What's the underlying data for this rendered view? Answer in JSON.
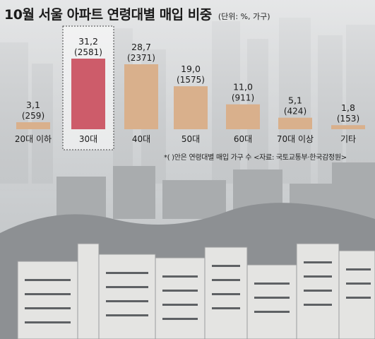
{
  "title": "10월 서울 아파트 연령대별 매입 비중",
  "unit": "(단위: %, 가구)",
  "note": "*( )안은 연령대별 매입 가구 수 <자료: 국토교통부·한국감정원>",
  "colors": {
    "bar": "#d9b08c",
    "highlight": "#cd5c6a"
  },
  "chart_data": {
    "type": "bar",
    "categories": [
      "20대 이하",
      "30대",
      "40대",
      "50대",
      "60대",
      "70대 이상",
      "기타"
    ],
    "values": [
      3.1,
      31.2,
      28.7,
      19.0,
      11.0,
      5.1,
      1.8
    ],
    "value_labels": [
      "3,1",
      "31,2",
      "28,7",
      "19,0",
      "11,0",
      "5,1",
      "1,8"
    ],
    "counts": [
      "(259)",
      "(2581)",
      "(2371)",
      "(1575)",
      "(911)",
      "(424)",
      "(153)"
    ],
    "highlight_index": 1,
    "ylim": [
      0,
      31.2
    ],
    "title": "10월 서울 아파트 연령대별 매입 비중"
  }
}
